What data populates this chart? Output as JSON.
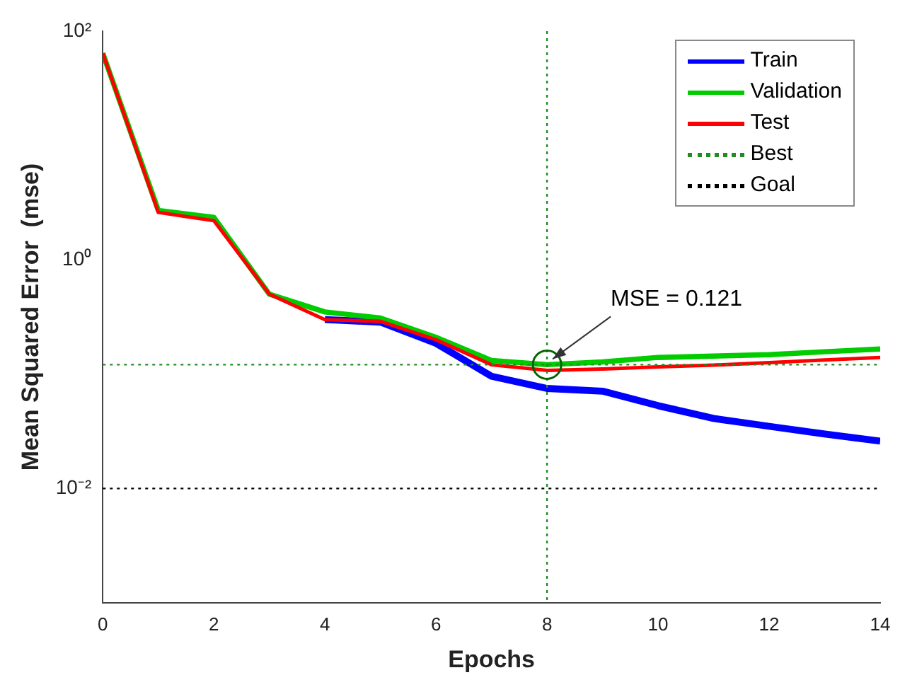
{
  "chart_data": {
    "type": "line",
    "xlabel": "Epochs",
    "ylabel": "Mean Squared Error  (mse)",
    "x": [
      0,
      1,
      2,
      3,
      4,
      5,
      6,
      7,
      8,
      9,
      10,
      11,
      12,
      13,
      14
    ],
    "series": [
      {
        "name": "Train",
        "color": "#0000ff",
        "values": [
          null,
          null,
          null,
          null,
          0.3,
          0.285,
          0.186,
          0.096,
          0.075,
          0.071,
          0.053,
          0.041,
          0.035,
          0.03,
          0.026
        ]
      },
      {
        "name": "Validation",
        "color": "#00cc00",
        "values": [
          64,
          2.7,
          2.35,
          0.5,
          0.35,
          0.31,
          0.21,
          0.132,
          0.121,
          0.128,
          0.14,
          0.144,
          0.148,
          0.157,
          0.166
        ]
      },
      {
        "name": "Test",
        "color": "#ff0000",
        "values": [
          64,
          2.6,
          2.2,
          0.5,
          0.3,
          0.29,
          0.2,
          0.121,
          0.108,
          0.111,
          0.116,
          0.12,
          0.126,
          0.133,
          0.14
        ]
      }
    ],
    "ref_lines": [
      {
        "axis": "x",
        "value": 8,
        "color": "#228b22",
        "line_style": "dotted"
      },
      {
        "axis": "y",
        "value": 0.121,
        "label": "Best",
        "color": "#228b22",
        "line_style": "dotted"
      },
      {
        "axis": "y",
        "value": 0.01,
        "label": "Goal",
        "color": "#000000",
        "line_style": "dotted"
      }
    ],
    "annotations": [
      {
        "text": "MSE = 0.121",
        "x": 8,
        "y": 0.121
      }
    ],
    "log": "y",
    "xlim": [
      0,
      14
    ],
    "xticks": [
      0,
      2,
      4,
      6,
      8,
      10,
      12,
      14
    ],
    "ylim": [
      0.001,
      100
    ],
    "yticks": [
      {
        "value": 100,
        "label": "10²"
      },
      {
        "value": 1,
        "label": "10⁰"
      },
      {
        "value": 0.01,
        "label": "10⁻²"
      }
    ],
    "grid": false,
    "legend": "top right",
    "marker": "none",
    "line_style": "solid"
  }
}
